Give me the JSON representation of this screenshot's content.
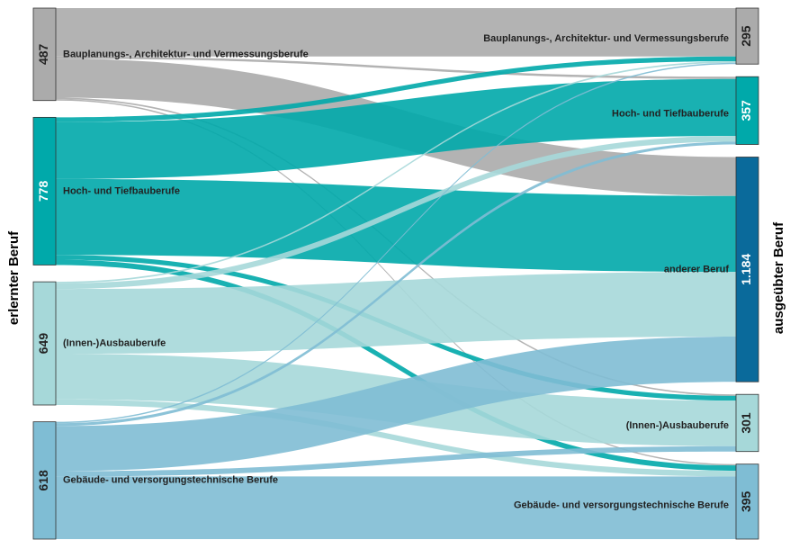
{
  "left_axis_label": "erlernter Beruf",
  "right_axis_label": "ausgeübter Beruf",
  "sources": [
    {
      "name": "Bauplanungs-, Architektur- und Vermessungsberufe",
      "value": 487,
      "color": "#ababab"
    },
    {
      "name": "Hoch- und Tiefbauberufe",
      "value": 778,
      "color": "#00a9aa"
    },
    {
      "name": "(Innen-)Ausbauberufe",
      "value": 649,
      "color": "#a6d8d9"
    },
    {
      "name": "Gebäude- und versorgungstechnische Berufe",
      "value": 618,
      "color": "#7fbdd4"
    }
  ],
  "targets": [
    {
      "name": "Bauplanungs-, Architektur- und Vermessungsberufe",
      "value": 295,
      "color": "#ababab"
    },
    {
      "name": "Hoch- und Tiefbauberufe",
      "value": 357,
      "color": "#00a9aa"
    },
    {
      "name": "anderer Beruf",
      "value": 1184,
      "value_label": "1.184",
      "color": "#0a6a9b"
    },
    {
      "name": "(Innen-)Ausbauberufe",
      "value": 301,
      "color": "#a6d8d9"
    },
    {
      "name": "Gebäude- und versorgungstechnische Berufe",
      "value": 395,
      "color": "#7fbdd4"
    }
  ],
  "links": [
    {
      "source": 0,
      "target": 0,
      "value": 255
    },
    {
      "source": 0,
      "target": 1,
      "value": 12
    },
    {
      "source": 0,
      "target": 2,
      "value": 205
    },
    {
      "source": 0,
      "target": 3,
      "value": 8
    },
    {
      "source": 0,
      "target": 4,
      "value": 7
    },
    {
      "source": 1,
      "target": 0,
      "value": 25
    },
    {
      "source": 1,
      "target": 1,
      "value": 300
    },
    {
      "source": 1,
      "target": 2,
      "value": 400
    },
    {
      "source": 1,
      "target": 3,
      "value": 25
    },
    {
      "source": 1,
      "target": 4,
      "value": 28
    },
    {
      "source": 2,
      "target": 0,
      "value": 8
    },
    {
      "source": 2,
      "target": 1,
      "value": 30
    },
    {
      "source": 2,
      "target": 2,
      "value": 341
    },
    {
      "source": 2,
      "target": 3,
      "value": 240
    },
    {
      "source": 2,
      "target": 4,
      "value": 30
    },
    {
      "source": 3,
      "target": 0,
      "value": 7
    },
    {
      "source": 3,
      "target": 1,
      "value": 15
    },
    {
      "source": 3,
      "target": 2,
      "value": 238
    },
    {
      "source": 3,
      "target": 3,
      "value": 28
    },
    {
      "source": 3,
      "target": 4,
      "value": 330
    }
  ]
}
